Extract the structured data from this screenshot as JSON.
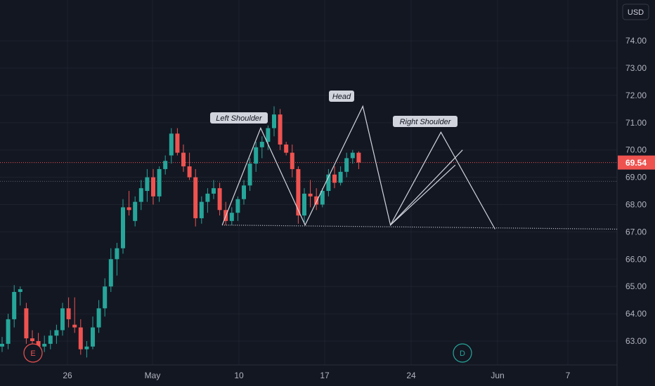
{
  "chart_data": {
    "type": "candlestick",
    "currency": "USD",
    "y_ticks": [
      "74.00",
      "73.00",
      "72.00",
      "71.00",
      "70.00",
      "69.00",
      "68.00",
      "67.00",
      "66.00",
      "65.00",
      "64.00",
      "63.00"
    ],
    "x_ticks": [
      "26",
      "May",
      "10",
      "17",
      "24",
      "Jun",
      "7"
    ],
    "last_price": "69.54",
    "ylim": [
      62.4,
      75.0
    ],
    "grid": true,
    "colors": {
      "up": "#26a69a",
      "down": "#ef5350",
      "background": "#131722",
      "pattern": "#d1d4dc",
      "price_line": "#ef5350"
    },
    "patterns": [
      {
        "type": "head-and-shoulders",
        "labels": [
          "Left Shoulder",
          "Head",
          "Right Shoulder"
        ],
        "points": [
          [
            6.8,
            67.25
          ],
          [
            10,
            70.8
          ],
          [
            13.7,
            67.25
          ],
          [
            18.5,
            71.6
          ],
          [
            20.8,
            67.25
          ],
          [
            25,
            70.65
          ],
          [
            29.5,
            67.1
          ]
        ]
      },
      {
        "type": "rising-wedge-lines",
        "lines": [
          [
            [
              20.8,
              67.25
            ],
            [
              26.8,
              70.0
            ]
          ],
          [
            [
              20.8,
              67.25
            ],
            [
              26.2,
              69.45
            ]
          ]
        ]
      }
    ],
    "neckline": [
      [
        6.8,
        67.25
      ],
      [
        37,
        67.1
      ]
    ],
    "reference_line": 68.85,
    "events": [
      {
        "label": "E",
        "type": "earnings"
      },
      {
        "label": "D",
        "type": "dividend"
      }
    ],
    "candles": [
      [
        0,
        62.8,
        63.15,
        62.6,
        62.9
      ],
      [
        1,
        62.9,
        64.0,
        62.7,
        63.8
      ],
      [
        2,
        63.8,
        65.05,
        63.5,
        64.8
      ],
      [
        3,
        64.8,
        65.0,
        64.3,
        64.9
      ],
      [
        4,
        64.2,
        64.4,
        62.9,
        63.1
      ],
      [
        5,
        63.1,
        63.4,
        62.6,
        63.0
      ],
      [
        6,
        63.0,
        63.3,
        62.6,
        62.8
      ],
      [
        7,
        62.8,
        63.2,
        62.6,
        62.9
      ],
      [
        8,
        62.9,
        63.4,
        62.7,
        63.2
      ],
      [
        9,
        63.2,
        63.6,
        62.9,
        63.4
      ],
      [
        10,
        63.4,
        64.4,
        63.2,
        64.2
      ],
      [
        11,
        64.2,
        64.6,
        63.5,
        63.8
      ],
      [
        12,
        63.6,
        64.6,
        63.3,
        63.5
      ],
      [
        13,
        63.5,
        63.8,
        62.5,
        62.7
      ],
      [
        14,
        62.7,
        63.0,
        62.4,
        62.8
      ],
      [
        15,
        62.8,
        63.9,
        62.7,
        63.5
      ],
      [
        16,
        63.5,
        64.5,
        63.3,
        64.2
      ],
      [
        17,
        64.2,
        65.3,
        63.9,
        65.0
      ],
      [
        18,
        65.0,
        66.4,
        64.8,
        66.0
      ],
      [
        19,
        66.0,
        66.6,
        65.4,
        66.4
      ],
      [
        20,
        66.4,
        68.2,
        66.2,
        67.9
      ],
      [
        21,
        67.9,
        68.5,
        67.6,
        67.8
      ],
      [
        22,
        67.4,
        68.3,
        67.2,
        68.1
      ],
      [
        23,
        68.1,
        68.9,
        67.8,
        68.6
      ],
      [
        24,
        68.5,
        69.3,
        68.1,
        69.0
      ],
      [
        25,
        69.0,
        69.3,
        68.0,
        68.3
      ],
      [
        26,
        68.3,
        69.4,
        68.1,
        69.3
      ],
      [
        27,
        69.3,
        69.8,
        69.1,
        69.6
      ],
      [
        28,
        69.8,
        70.8,
        69.5,
        70.6
      ],
      [
        29,
        70.6,
        70.8,
        69.8,
        69.9
      ],
      [
        30,
        69.9,
        70.2,
        69.2,
        69.4
      ],
      [
        31,
        69.4,
        69.9,
        68.9,
        69.0
      ],
      [
        32,
        69.0,
        69.3,
        67.2,
        67.5
      ],
      [
        33,
        67.5,
        68.3,
        67.3,
        68.1
      ],
      [
        34,
        68.1,
        68.6,
        67.7,
        68.4
      ],
      [
        35,
        68.4,
        68.9,
        68.2,
        68.6
      ],
      [
        36,
        68.6,
        68.8,
        67.6,
        67.8
      ],
      [
        37,
        67.8,
        68.1,
        67.25,
        67.4
      ],
      [
        38,
        67.4,
        67.9,
        67.25,
        67.7
      ],
      [
        39,
        67.7,
        68.3,
        67.4,
        68.2
      ],
      [
        40,
        68.2,
        68.9,
        68.0,
        68.7
      ],
      [
        41,
        68.7,
        69.7,
        68.5,
        69.5
      ],
      [
        42,
        69.5,
        70.3,
        69.2,
        70.1
      ],
      [
        43,
        70.1,
        70.5,
        69.7,
        70.3
      ],
      [
        44,
        70.3,
        70.9,
        70.0,
        70.8
      ],
      [
        45,
        70.8,
        71.6,
        70.5,
        71.3
      ],
      [
        46,
        71.3,
        71.5,
        70.0,
        70.2
      ],
      [
        47,
        70.2,
        70.3,
        69.8,
        69.9
      ],
      [
        48,
        69.9,
        70.2,
        69.0,
        69.3
      ],
      [
        49,
        69.3,
        69.4,
        67.3,
        67.6
      ],
      [
        50,
        67.6,
        68.6,
        67.3,
        68.4
      ],
      [
        51,
        68.4,
        68.9,
        67.9,
        68.3
      ],
      [
        52,
        68.3,
        68.6,
        67.8,
        68.0
      ],
      [
        53,
        68.0,
        68.6,
        67.9,
        68.5
      ],
      [
        54,
        68.5,
        69.3,
        68.3,
        69.1
      ],
      [
        55,
        69.1,
        69.4,
        68.6,
        68.8
      ],
      [
        56,
        68.8,
        69.4,
        68.7,
        69.2
      ],
      [
        57,
        69.2,
        69.9,
        69.0,
        69.7
      ],
      [
        58,
        69.7,
        70.0,
        69.5,
        69.9
      ],
      [
        59,
        69.9,
        69.95,
        69.3,
        69.54
      ]
    ]
  }
}
